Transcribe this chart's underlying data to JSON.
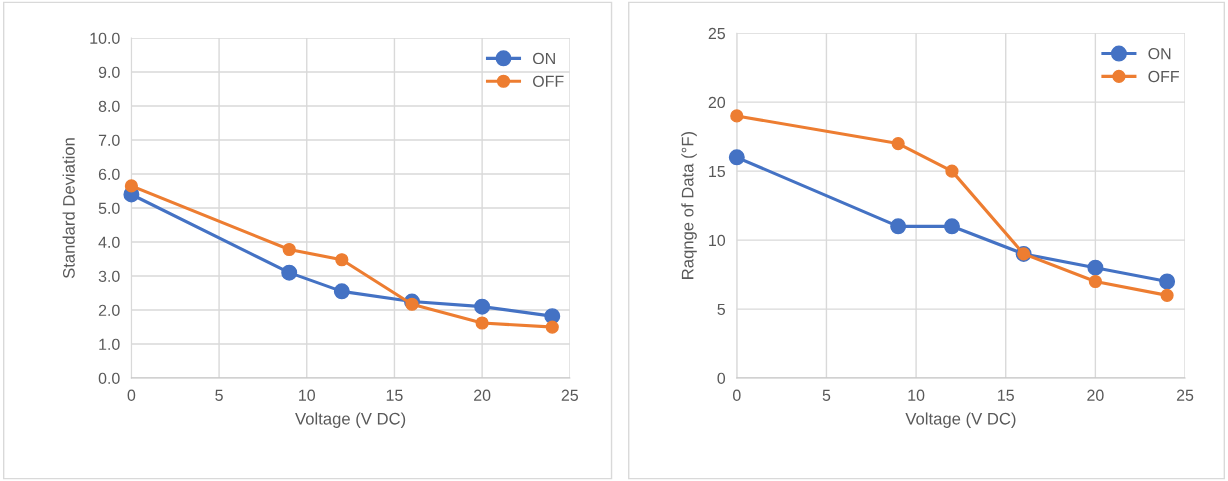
{
  "chart_data": [
    {
      "type": "line",
      "xlabel": "Voltage (V DC)",
      "ylabel": "Standard Deviation",
      "x": [
        0,
        9,
        12,
        16,
        20,
        24
      ],
      "series": [
        {
          "name": "ON",
          "color": "#4472c4",
          "values": [
            5.4,
            3.1,
            2.55,
            2.25,
            2.1,
            1.82
          ]
        },
        {
          "name": "OFF",
          "color": "#ed7d31",
          "values": [
            5.65,
            3.78,
            3.48,
            2.17,
            1.62,
            1.5
          ]
        }
      ],
      "xlim": [
        0,
        25
      ],
      "xticks": [
        0,
        5,
        10,
        15,
        20,
        25
      ],
      "ylim": [
        0,
        10
      ],
      "yticks": [
        {
          "value": 0,
          "label": "0.0"
        },
        {
          "value": 1,
          "label": "1.0"
        },
        {
          "value": 2,
          "label": "2.0"
        },
        {
          "value": 3,
          "label": "3.0"
        },
        {
          "value": 4,
          "label": "4.0"
        },
        {
          "value": 5,
          "label": "5.0"
        },
        {
          "value": 6,
          "label": "6.0"
        },
        {
          "value": 7,
          "label": "7.0"
        },
        {
          "value": 8,
          "label": "8.0"
        },
        {
          "value": 9,
          "label": "9.0"
        },
        {
          "value": 10,
          "label": "10.0"
        }
      ],
      "grid": true,
      "legend": "top right",
      "marker": "circle",
      "line_style": "solid"
    },
    {
      "type": "line",
      "xlabel": "Voltage (V DC)",
      "ylabel": "Raqnge of Data (°F)",
      "x": [
        0,
        9,
        12,
        16,
        20,
        24
      ],
      "series": [
        {
          "name": "ON",
          "color": "#4472c4",
          "values": [
            16,
            11,
            11,
            9,
            8,
            7
          ]
        },
        {
          "name": "OFF",
          "color": "#ed7d31",
          "values": [
            19,
            17,
            15,
            9,
            7,
            6
          ]
        }
      ],
      "xlim": [
        0,
        25
      ],
      "xticks": [
        0,
        5,
        10,
        15,
        20,
        25
      ],
      "ylim": [
        0,
        25
      ],
      "yticks": [
        0,
        5,
        10,
        15,
        20,
        25
      ],
      "grid": true,
      "legend": "top right",
      "marker": "circle",
      "line_style": "solid"
    }
  ]
}
